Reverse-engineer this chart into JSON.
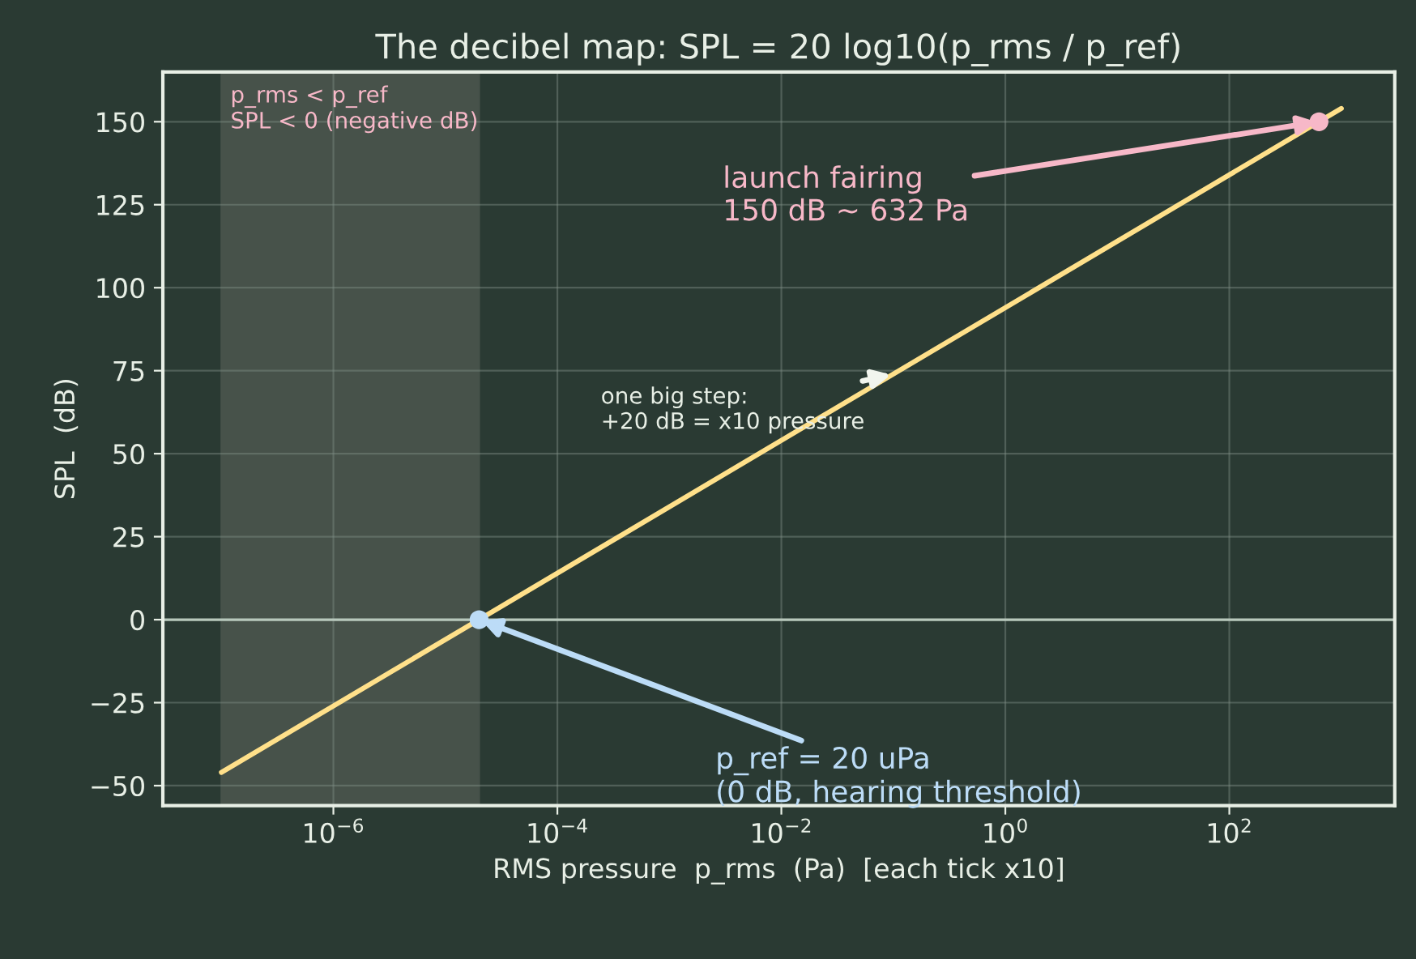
{
  "chart_data": {
    "type": "line",
    "title": "The decibel map: SPL = 20 log10(p_rms / p_ref)",
    "xlabel": "RMS pressure  p_rms  (Pa)  [each tick x10]",
    "ylabel": "SPL  (dB)",
    "series": [
      {
        "x": [
          1e-07,
          1000.0
        ],
        "values": [
          -46,
          154
        ],
        "color": "#ffe08a"
      },
      {
        "type": "scatter",
        "x": [
          2e-05,
          632
        ],
        "values": [
          0,
          150
        ],
        "colors": [
          "#bcdcf7",
          "#f7b8c8"
        ]
      }
    ],
    "annotations": [
      {
        "text": "launch fairing\n150 dB ~ 632 Pa",
        "x": 632,
        "y": 150
      },
      {
        "text": "one big step:\n+20 dB = x10 pressure",
        "x": 0.1,
        "y": 74
      },
      {
        "text": "p_ref = 20 uPa\n(0 dB, hearing threshold)",
        "x": 2e-05,
        "y": 0
      }
    ],
    "bands": [
      {
        "axis": "x",
        "from": 1e-07,
        "to": 2e-05,
        "label": "p_rms < p_ref\nSPL < 0 (negative dB)",
        "color": "#8a8a80"
      }
    ],
    "ref_lines": [
      {
        "axis": "y",
        "value": 0,
        "color": "#b8c8bc"
      }
    ],
    "log": "x",
    "grid": true,
    "xlim": [
      3e-08,
      3000.0
    ],
    "ylim": [
      -56,
      165
    ],
    "xticks": [
      {
        "value": 1e-06,
        "label": "10$^{−6}$"
      },
      {
        "value": 0.0001,
        "label": "10$^{−4}$"
      },
      {
        "value": 0.01,
        "label": "10$^{−2}$"
      },
      {
        "value": 1,
        "label": "10$^{0}$"
      },
      {
        "value": 100,
        "label": "10$^{2}$"
      }
    ],
    "yticks": [
      {
        "value": -50,
        "label": "−50"
      },
      {
        "value": -25,
        "label": "−25"
      },
      0,
      25,
      50,
      75,
      100,
      125,
      150
    ]
  }
}
